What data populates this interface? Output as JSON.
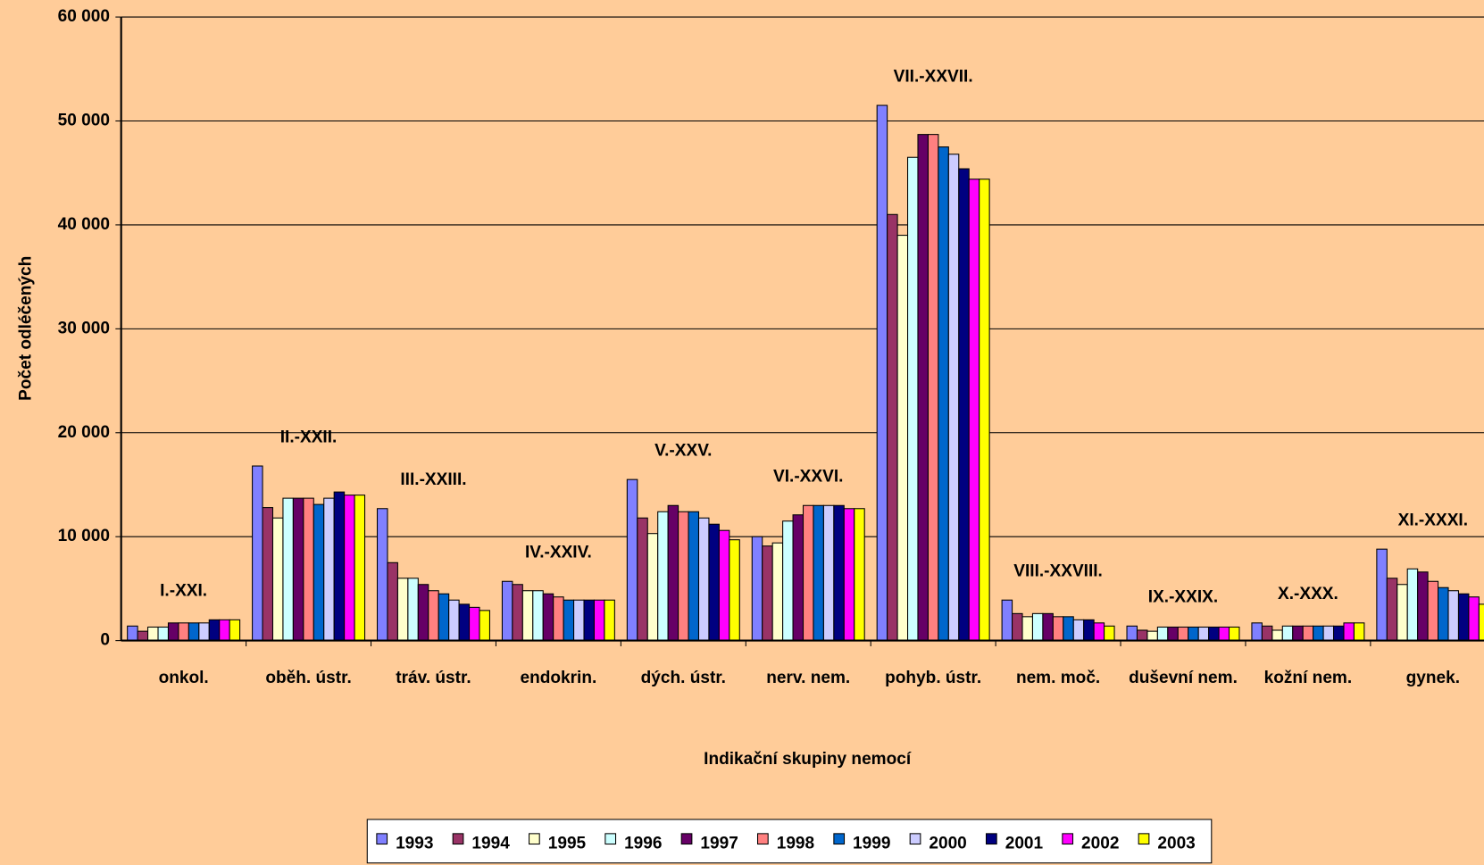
{
  "chart_data": {
    "type": "bar",
    "ylabel": "Počet odléčených",
    "xlabel": "Indikační skupiny nemocí",
    "categories": [
      "onkol.",
      "oběh. ústr.",
      "tráv. ústr.",
      "endokrin.",
      "dých. ústr.",
      "nerv. nem.",
      "pohyb. ústr.",
      "nem. moč.",
      "duševní nem.",
      "kožní nem.",
      "gynek."
    ],
    "annotations": [
      "I.-XXI.",
      "II.-XXII.",
      "III.-XXIII.",
      "IV.-XXIV.",
      "V.-XXV.",
      "VI.-XXVI.",
      "VII.-XXVII.",
      "VIII.-XXVIII.",
      "IX.-XXIX.",
      "X.-XXX.",
      "XI.-XXXI."
    ],
    "ylim": [
      0,
      60000
    ],
    "yticks": [
      0,
      {
        "value": 10000,
        "label": "10 000"
      },
      {
        "value": 20000,
        "label": "20 000"
      },
      {
        "value": 30000,
        "label": "30 000"
      },
      {
        "value": 40000,
        "label": "40 000"
      },
      {
        "value": 50000,
        "label": "50 000"
      },
      {
        "value": 60000,
        "label": "60 000"
      }
    ],
    "grid": true,
    "legend": "bottom",
    "series": [
      {
        "name": "1993",
        "color": "#8080ff",
        "values": [
          1400,
          16800,
          12700,
          5700,
          15500,
          10000,
          51500,
          3900,
          1400,
          1700,
          8800
        ]
      },
      {
        "name": "1994",
        "color": "#993366",
        "values": [
          900,
          12800,
          7500,
          5400,
          11800,
          9100,
          41000,
          2600,
          1000,
          1400,
          6000
        ]
      },
      {
        "name": "1995",
        "color": "#ffffcc",
        "values": [
          1300,
          11800,
          6000,
          4800,
          10300,
          9400,
          39000,
          2300,
          900,
          1000,
          5400
        ]
      },
      {
        "name": "1996",
        "color": "#ccffff",
        "values": [
          1300,
          13700,
          6000,
          4800,
          12400,
          11500,
          46500,
          2600,
          1300,
          1400,
          6900
        ]
      },
      {
        "name": "1997",
        "color": "#660066",
        "values": [
          1700,
          13700,
          5400,
          4500,
          13000,
          12100,
          48700,
          2600,
          1300,
          1400,
          6600
        ]
      },
      {
        "name": "1998",
        "color": "#ff8080",
        "values": [
          1700,
          13700,
          4800,
          4200,
          12400,
          13000,
          48700,
          2300,
          1300,
          1400,
          5700
        ]
      },
      {
        "name": "1999",
        "color": "#0066cc",
        "values": [
          1700,
          13100,
          4500,
          3900,
          12400,
          13000,
          47500,
          2300,
          1300,
          1400,
          5100
        ]
      },
      {
        "name": "2000",
        "color": "#ccccff",
        "values": [
          1700,
          13700,
          3900,
          3900,
          11800,
          13000,
          46800,
          2000,
          1300,
          1400,
          4800
        ]
      },
      {
        "name": "2001",
        "color": "#000080",
        "values": [
          2000,
          14300,
          3500,
          3900,
          11200,
          13000,
          45400,
          2000,
          1300,
          1400,
          4500
        ]
      },
      {
        "name": "2002",
        "color": "#ff00ff",
        "values": [
          2000,
          14000,
          3200,
          3900,
          10600,
          12700,
          44400,
          1700,
          1300,
          1700,
          4200
        ]
      },
      {
        "name": "2003",
        "color": "#ffff00",
        "values": [
          2000,
          14000,
          2900,
          3900,
          9700,
          12700,
          44400,
          1400,
          1300,
          1700,
          3500
        ]
      }
    ]
  }
}
